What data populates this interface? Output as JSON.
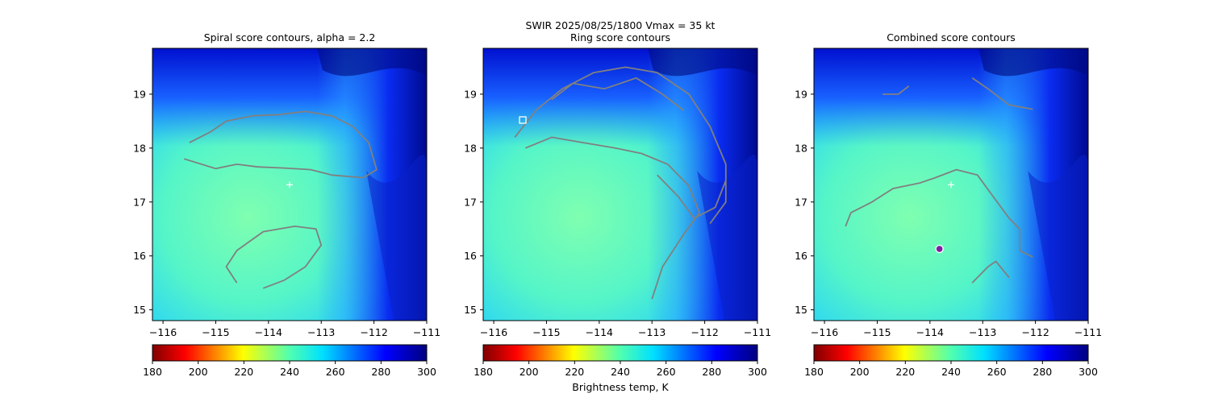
{
  "figure": {
    "title_line1": "SWIR  2025/08/25/1800    Vmax = 35 kt",
    "colorbar_label": "Brightness temp, K"
  },
  "colors": {
    "contour": "#808080",
    "marker": "#ffffff",
    "center_dot": "#7b1fa2"
  },
  "chart_data": [
    {
      "type": "heatmap",
      "title": "Spiral score contours, alpha =  2.2",
      "xlim": [
        -116.2,
        -111.0
      ],
      "ylim": [
        14.8,
        19.85
      ],
      "xticks": [
        -116,
        -115,
        -114,
        -113,
        -112,
        -111
      ],
      "xtick_labels": [
        "−116",
        "−115",
        "−114",
        "−113",
        "−112",
        "−111"
      ],
      "yticks": [
        15,
        16,
        17,
        18,
        19
      ],
      "ytick_labels": [
        "15",
        "16",
        "17",
        "18",
        "19"
      ],
      "colorbar": {
        "range": [
          180,
          300
        ],
        "ticks": [
          180,
          200,
          220,
          240,
          260,
          280,
          300
        ],
        "tick_labels": [
          "180",
          "200",
          "220",
          "240",
          "260",
          "280",
          "300"
        ],
        "colormap": "jet"
      },
      "markers": [
        {
          "kind": "plus",
          "lon": -113.6,
          "lat": 17.32
        }
      ],
      "contours": [
        [
          [
            -115.5,
            18.1
          ],
          [
            -115.1,
            18.3
          ],
          [
            -114.8,
            18.5
          ],
          [
            -114.3,
            18.6
          ],
          [
            -113.8,
            18.62
          ],
          [
            -113.3,
            18.68
          ],
          [
            -112.8,
            18.6
          ],
          [
            -112.4,
            18.4
          ],
          [
            -112.1,
            18.1
          ],
          [
            -111.95,
            17.6
          ],
          [
            -112.2,
            17.45
          ],
          [
            -112.8,
            17.5
          ],
          [
            -113.2,
            17.6
          ],
          [
            -113.7,
            17.63
          ],
          [
            -114.2,
            17.65
          ],
          [
            -114.6,
            17.7
          ],
          [
            -115.0,
            17.62
          ],
          [
            -115.6,
            17.8
          ]
        ],
        [
          [
            -114.6,
            15.5
          ],
          [
            -114.8,
            15.8
          ],
          [
            -114.6,
            16.1
          ],
          [
            -114.1,
            16.45
          ],
          [
            -113.5,
            16.55
          ],
          [
            -113.1,
            16.5
          ],
          [
            -113.0,
            16.2
          ],
          [
            -113.3,
            15.8
          ],
          [
            -113.7,
            15.55
          ],
          [
            -114.1,
            15.4
          ]
        ]
      ]
    },
    {
      "type": "heatmap",
      "title": "Ring score contours",
      "xlim": [
        -116.2,
        -111.0
      ],
      "ylim": [
        14.8,
        19.85
      ],
      "xticks": [
        -116,
        -115,
        -114,
        -113,
        -112,
        -111
      ],
      "xtick_labels": [
        "−116",
        "−115",
        "−114",
        "−113",
        "−112",
        "−111"
      ],
      "yticks": [
        15,
        16,
        17,
        18,
        19
      ],
      "ytick_labels": [
        "15",
        "16",
        "17",
        "18",
        "19"
      ],
      "colorbar": {
        "range": [
          180,
          300
        ],
        "ticks": [
          180,
          200,
          220,
          240,
          260,
          280,
          300
        ],
        "tick_labels": [
          "180",
          "200",
          "220",
          "240",
          "260",
          "280",
          "300"
        ],
        "colormap": "jet"
      },
      "markers": [
        {
          "kind": "square",
          "lon": -115.45,
          "lat": 18.52
        }
      ],
      "contours": [
        [
          [
            -115.6,
            18.2
          ],
          [
            -115.2,
            18.7
          ],
          [
            -114.7,
            19.1
          ],
          [
            -114.1,
            19.4
          ],
          [
            -113.5,
            19.5
          ],
          [
            -112.9,
            19.4
          ],
          [
            -112.3,
            19.0
          ],
          [
            -111.9,
            18.4
          ],
          [
            -111.6,
            17.7
          ],
          [
            -111.6,
            17.0
          ],
          [
            -111.9,
            16.6
          ]
        ],
        [
          [
            -115.4,
            18.0
          ],
          [
            -114.9,
            18.2
          ],
          [
            -114.3,
            18.1
          ],
          [
            -113.7,
            18.0
          ],
          [
            -113.2,
            17.9
          ],
          [
            -112.7,
            17.7
          ],
          [
            -112.3,
            17.3
          ],
          [
            -112.1,
            16.8
          ],
          [
            -112.4,
            16.4
          ],
          [
            -112.8,
            15.8
          ],
          [
            -113.0,
            15.2
          ]
        ],
        [
          [
            -114.9,
            18.9
          ],
          [
            -114.5,
            19.2
          ],
          [
            -113.9,
            19.1
          ],
          [
            -113.3,
            19.3
          ],
          [
            -112.8,
            19.0
          ],
          [
            -112.4,
            18.7
          ]
        ],
        [
          [
            -112.9,
            17.5
          ],
          [
            -112.5,
            17.1
          ],
          [
            -112.2,
            16.7
          ],
          [
            -111.8,
            16.9
          ],
          [
            -111.6,
            17.4
          ]
        ]
      ]
    },
    {
      "type": "heatmap",
      "title": "Combined score contours",
      "xlim": [
        -116.2,
        -111.0
      ],
      "ylim": [
        14.8,
        19.85
      ],
      "xticks": [
        -116,
        -115,
        -114,
        -113,
        -112,
        -111
      ],
      "xtick_labels": [
        "−116",
        "−115",
        "−114",
        "−113",
        "−112",
        "−111"
      ],
      "yticks": [
        15,
        16,
        17,
        18,
        19
      ],
      "ytick_labels": [
        "15",
        "16",
        "17",
        "18",
        "19"
      ],
      "colorbar": {
        "range": [
          180,
          300
        ],
        "ticks": [
          180,
          200,
          220,
          240,
          260,
          280,
          300
        ],
        "tick_labels": [
          "180",
          "200",
          "220",
          "240",
          "260",
          "280",
          "300"
        ],
        "colormap": "jet"
      },
      "markers": [
        {
          "kind": "plus",
          "lon": -113.6,
          "lat": 17.32
        },
        {
          "kind": "dot",
          "lon": -113.82,
          "lat": 16.13
        }
      ],
      "contours": [
        [
          [
            -114.9,
            19.0
          ],
          [
            -114.6,
            19.0
          ],
          [
            -114.4,
            19.15
          ]
        ],
        [
          [
            -113.2,
            19.3
          ],
          [
            -112.9,
            19.1
          ],
          [
            -112.5,
            18.8
          ],
          [
            -112.05,
            18.72
          ]
        ],
        [
          [
            -115.6,
            16.55
          ],
          [
            -115.5,
            16.8
          ],
          [
            -115.1,
            17.0
          ],
          [
            -114.7,
            17.25
          ],
          [
            -114.2,
            17.35
          ],
          [
            -113.9,
            17.45
          ],
          [
            -113.5,
            17.6
          ],
          [
            -113.1,
            17.5
          ],
          [
            -112.8,
            17.1
          ],
          [
            -112.5,
            16.7
          ],
          [
            -112.3,
            16.5
          ],
          [
            -112.3,
            16.1
          ],
          [
            -112.05,
            15.98
          ]
        ],
        [
          [
            -113.2,
            15.5
          ],
          [
            -112.9,
            15.8
          ],
          [
            -112.75,
            15.9
          ],
          [
            -112.5,
            15.6
          ]
        ]
      ]
    }
  ]
}
